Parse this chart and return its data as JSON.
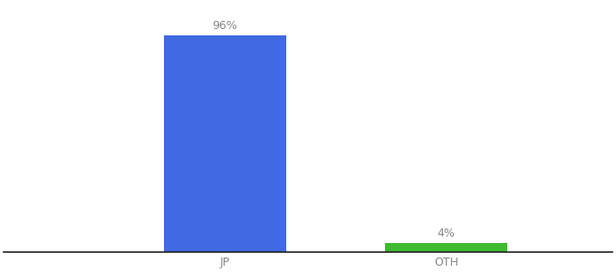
{
  "categories": [
    "JP",
    "OTH"
  ],
  "values": [
    96,
    4
  ],
  "bar_colors": [
    "#4169e1",
    "#3dba2e"
  ],
  "label_texts": [
    "96%",
    "4%"
  ],
  "ylim": [
    0,
    110
  ],
  "background_color": "#ffffff",
  "bar_width": 0.55,
  "label_fontsize": 9,
  "tick_fontsize": 9,
  "label_color": "#888888",
  "tick_color": "#888888",
  "spine_color": "#222222"
}
